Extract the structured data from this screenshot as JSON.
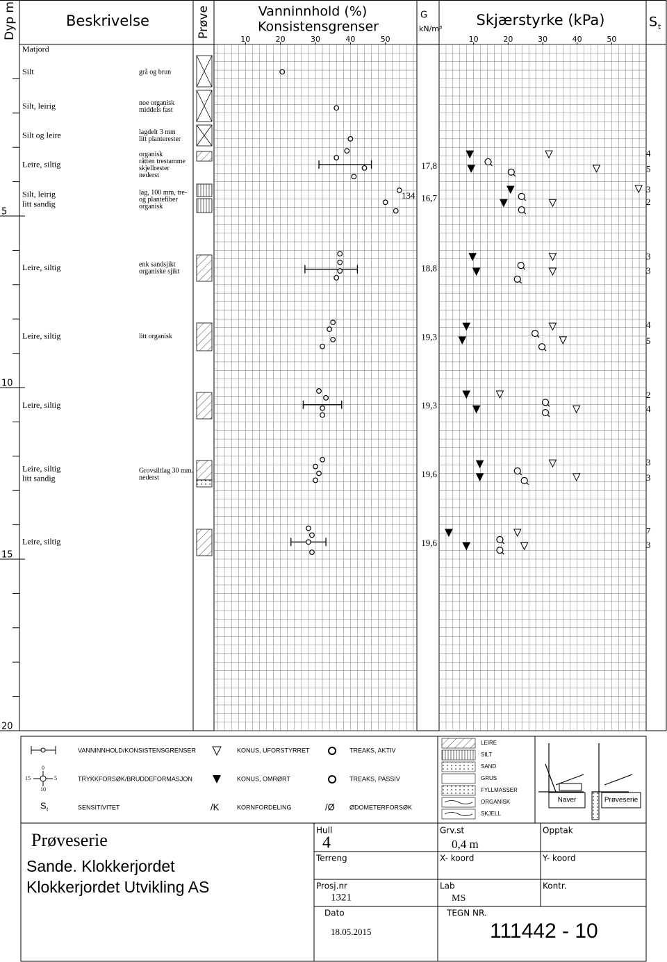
{
  "header": {
    "depth_label": "Dyp m",
    "description_label": "Beskrivelse",
    "sample_label": "Prøve",
    "water_title": "Vanninnhold (%)",
    "water_subtitle": "Konsistensgrenser",
    "density_label": "G",
    "density_unit": "kN/m³",
    "shear_title": "Skjærstyrke (kPa)",
    "st_main": "S",
    "st_sub": "t"
  },
  "chart_data": {
    "type": "borehole_log",
    "ylim": [
      0,
      20
    ],
    "yticks": [
      5,
      10,
      15,
      20
    ],
    "layers": [
      {
        "depth": 0.16,
        "soil": [
          "Matjord"
        ],
        "note": []
      },
      {
        "depth": 0.81,
        "soil": [
          "Silt"
        ],
        "note": [
          "grå og brun"
        ]
      },
      {
        "depth": 1.82,
        "soil": [
          "Silt, leirig"
        ],
        "note": [
          "noe organisk",
          "middels fast"
        ]
      },
      {
        "depth": 2.67,
        "soil": [
          "Silt og leire"
        ],
        "note": [
          "lagdelt 3 mm",
          "litt planterester"
        ]
      },
      {
        "depth": 3.52,
        "soil": [
          "Leire, siltig"
        ],
        "note": [
          "organisk",
          "råtten trestamme",
          "skjellrester",
          "nederst"
        ]
      },
      {
        "depth": 4.53,
        "soil": [
          "Silt, leirig",
          "litt sandig"
        ],
        "note": [
          "lag, 100 mm, tre-",
          "og plantefiber",
          "organisk"
        ]
      },
      {
        "depth": 6.52,
        "soil": [
          "Leire, siltig"
        ],
        "note": [
          "enk sandsjikt",
          "organiske sjikt"
        ]
      },
      {
        "depth": 8.52,
        "soil": [
          "Leire, siltig"
        ],
        "note": [
          "litt organisk"
        ]
      },
      {
        "depth": 10.53,
        "soil": [
          "Leire, siltig"
        ],
        "note": []
      },
      {
        "depth": 12.53,
        "soil": [
          "Leire, siltig",
          "litt sandig"
        ],
        "note": [
          "Grovsiltlag 30 mm.",
          "nederst"
        ]
      },
      {
        "depth": 14.51,
        "soil": [
          "Leire, siltig"
        ],
        "note": []
      }
    ],
    "water": {
      "xlim": [
        1,
        59
      ],
      "xticks": [
        10,
        20,
        30,
        40,
        50
      ],
      "depth": [
        0.8,
        1.85,
        2.75,
        3.1,
        3.3,
        3.6,
        3.85,
        4.25,
        4.6,
        4.85,
        6.1,
        6.35,
        6.6,
        6.8,
        8.1,
        8.3,
        8.6,
        8.8,
        10.1,
        10.3,
        10.6,
        10.8,
        12.1,
        12.3,
        12.5,
        12.7,
        14.1,
        14.3,
        14.5,
        14.8
      ],
      "values": [
        20.5,
        36,
        40,
        39,
        36,
        44,
        41,
        54,
        50,
        53,
        37,
        37,
        37,
        36,
        35,
        34,
        35,
        32,
        31,
        33,
        32,
        32,
        32,
        30,
        31,
        30,
        28,
        29,
        28,
        29
      ],
      "limits": {
        "depth": [
          3.5,
          6.55,
          10.5,
          14.5
        ],
        "plastic": [
          31,
          27,
          26.5,
          23
        ],
        "liquid": [
          46,
          42,
          37.5,
          33
        ]
      },
      "annotation": {
        "text": "134",
        "depth": 4.43
      }
    },
    "density": {
      "depth": [
        3.56,
        4.5,
        6.55,
        8.55,
        10.55,
        12.55,
        14.55
      ],
      "values": [
        17.8,
        16.7,
        18.8,
        19.3,
        19.3,
        19.6,
        19.6
      ],
      "value_labels": [
        "17,8",
        "16,7",
        "18,8",
        "19,3",
        "19,3",
        "19,6",
        "19,6"
      ]
    },
    "shear": {
      "xlim": [
        0,
        60
      ],
      "xticks": [
        10,
        20,
        30,
        40,
        50
      ],
      "cone_undisturbed": {
        "depth": [
          3.2,
          3.62,
          4.21,
          4.62,
          6.19,
          6.62,
          8.22,
          8.62,
          10.2,
          10.63,
          12.21,
          12.61,
          14.23,
          14.62
        ],
        "values": [
          31.8,
          45.6,
          57.8,
          32.9,
          32.9,
          32.9,
          32.9,
          35.9,
          17.6,
          39.8,
          32.9,
          39.8,
          22.7,
          24.7
        ]
      },
      "cone_remolded": {
        "depth": [
          3.2,
          3.62,
          4.23,
          4.62,
          6.19,
          6.62,
          8.22,
          8.62,
          10.2,
          10.63,
          12.23,
          12.61,
          14.23,
          14.62
        ],
        "values": [
          8.9,
          9.3,
          20.7,
          18.7,
          9.7,
          10.8,
          7.9,
          6.7,
          7.9,
          10.8,
          11.8,
          11.8,
          2.8,
          7.9
        ]
      },
      "compression": {
        "depth": [
          3.42,
          3.72,
          4.43,
          4.82,
          6.44,
          6.84,
          8.42,
          8.81,
          10.43,
          10.73,
          12.43,
          12.71,
          14.43,
          14.74
        ],
        "values": [
          14.2,
          20.9,
          23.9,
          23.9,
          23.7,
          22.7,
          27.8,
          29.8,
          30.8,
          30.8,
          22.7,
          24.7,
          17.6,
          17.6
        ]
      }
    },
    "sensitivity": {
      "depth": [
        3.2,
        3.65,
        4.25,
        4.62,
        6.2,
        6.62,
        8.2,
        8.66,
        10.24,
        10.65,
        12.21,
        12.65,
        14.2,
        14.62
      ],
      "values": [
        4,
        5,
        3,
        2,
        3,
        3,
        4,
        5,
        2,
        4,
        3,
        3,
        7,
        3
      ]
    }
  },
  "legend": {
    "water": "VANNINNHOLD/KONSISTENSGRENSER",
    "cone_undisturbed": "KONUS, UFORSTYRRET",
    "vane_active": "TREAKS, AKTIV",
    "compression": "TRYKKFORSØK/BRUDDEFORMASJON",
    "cone_remolded": "KONUS, OMRØRT",
    "vane_passive": "TREAKS, PASSIV",
    "sensitivity": "SENSITIVITET",
    "grain_symbol": "/K",
    "grain": "KORNFORDELING",
    "oedometer_symbol": "/Ø",
    "oedometer": "ØDOMETERFORSØK",
    "compression_symbol": {
      "top": "0",
      "left": "15",
      "right": "5",
      "bottom": "10"
    },
    "st_main": "S",
    "st_sub": "t",
    "soils": [
      "LEIRE",
      "SILT",
      "SAND",
      "GRUS",
      "FYLLMASSER",
      "ORGANISK",
      "SKJELL"
    ],
    "rigs": [
      "Naver",
      "Prøveserie"
    ]
  },
  "title_block": {
    "method": "Prøveserie",
    "location": "Sande. Klokkerjordet",
    "client": "Klokkerjordet Utvikling AS",
    "hole_label": "Hull",
    "hole": "4",
    "terrain_label": "Terreng",
    "project_label": "Prosj.nr",
    "project": "1321",
    "date_label": "Dato",
    "date": "18.05.2015",
    "groundwater_label": "Grv.st",
    "groundwater": "0,4 m",
    "x_label": "X- koord",
    "lab_label": "Lab",
    "lab": "MS",
    "drawing_label": "TEGN NR.",
    "drawing": "111442 - 10",
    "recorded_label": "Opptak",
    "y_label": "Y- koord",
    "checked_label": "Kontr."
  }
}
